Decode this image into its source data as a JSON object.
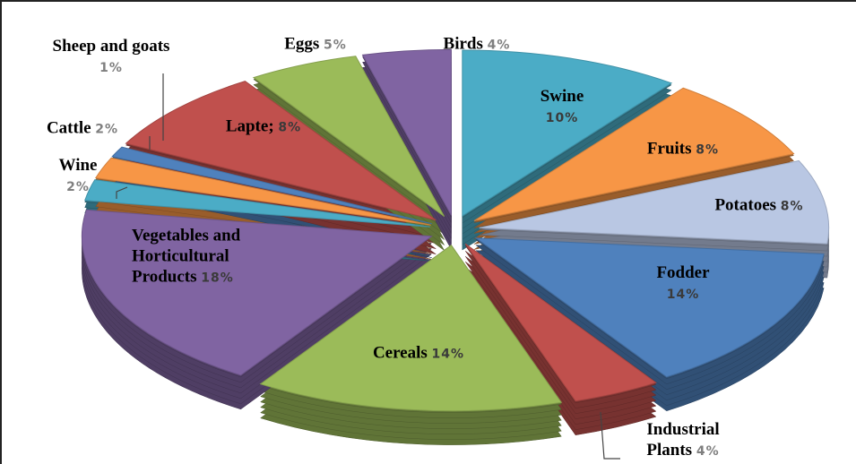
{
  "chart_data": {
    "type": "pie",
    "categories": [
      "Swine",
      "Fruits",
      "Potatoes",
      "Fodder",
      "Industrial Plants",
      "Cereals",
      "Vegetables and Horticultural Products",
      "Wine",
      "Cattle",
      "Sheep and goats",
      "Lapte;",
      "Eggs",
      "Birds"
    ],
    "values": [
      10,
      8,
      8,
      14,
      4,
      14,
      18,
      2,
      2,
      1,
      8,
      5,
      4
    ],
    "value_labels": [
      "10%",
      "8%",
      "8%",
      "14%",
      "4%",
      "14%",
      "18%",
      "2%",
      "2%",
      "1%",
      "8%",
      "5%",
      "4%"
    ],
    "colors": [
      "#4bacc6",
      "#f79646",
      "#b9c7e3",
      "#4f81bd",
      "#c0504d",
      "#9bbb59",
      "#8064a2",
      "#4bacc6",
      "#f79646",
      "#4f81bd",
      "#c0504d",
      "#9bbb59",
      "#8064a2"
    ]
  }
}
